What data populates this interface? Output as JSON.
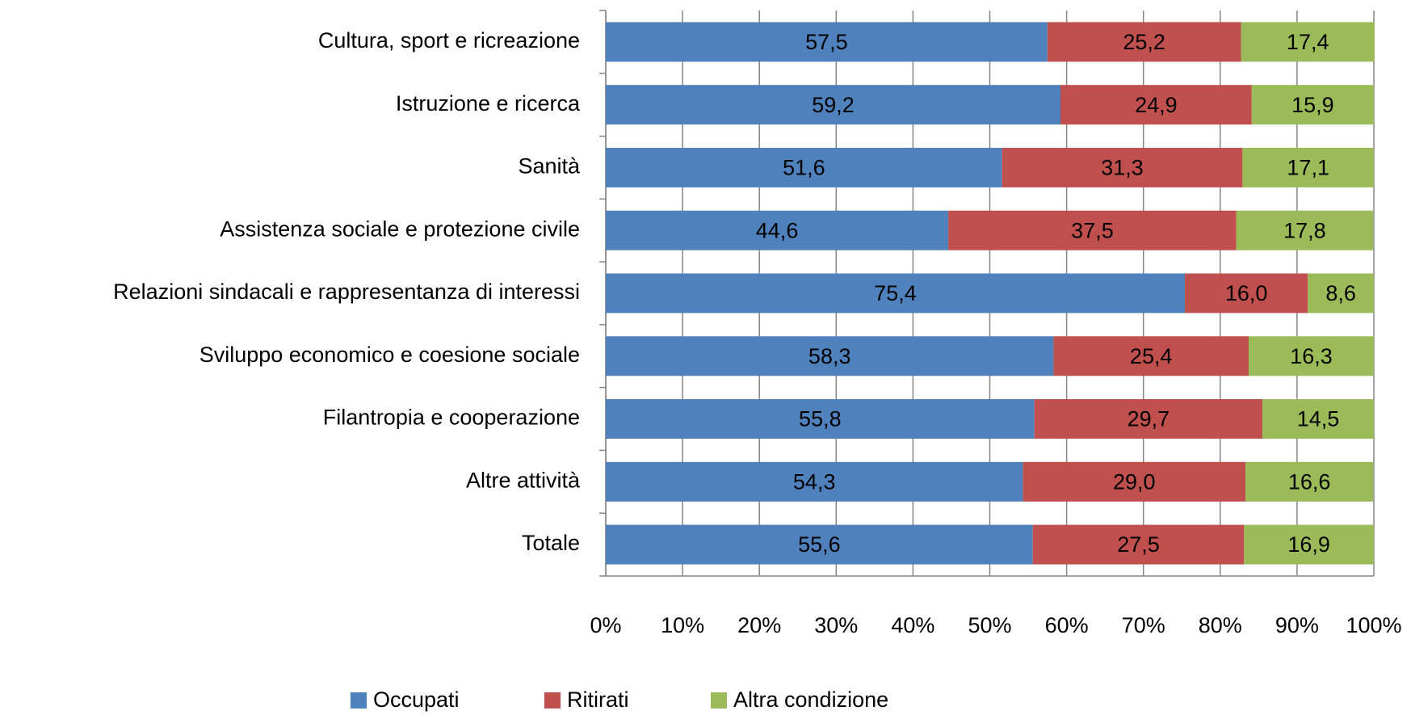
{
  "chart_data": {
    "type": "bar",
    "orientation": "horizontal",
    "stacked": true,
    "categories": [
      "Cultura, sport e ricreazione",
      "Istruzione e ricerca",
      "Sanità",
      "Assistenza sociale e protezione civile",
      "Relazioni sindacali e rappresentanza di interessi",
      "Sviluppo economico e coesione sociale",
      "Filantropia e cooperazione",
      "Altre attività",
      "Totale"
    ],
    "series": [
      {
        "name": "Occupati",
        "color": "#4f81bd",
        "values": [
          57.5,
          59.2,
          51.6,
          44.6,
          75.4,
          58.3,
          55.8,
          54.3,
          55.6
        ],
        "value_labels": [
          "57,5",
          "59,2",
          "51,6",
          "44,6",
          "75,4",
          "58,3",
          "55,8",
          "54,3",
          "55,6"
        ]
      },
      {
        "name": "Ritirati",
        "color": "#c0504d",
        "values": [
          25.2,
          24.9,
          31.3,
          37.5,
          16.0,
          25.4,
          29.7,
          29.0,
          27.5
        ],
        "value_labels": [
          "25,2",
          "24,9",
          "31,3",
          "37,5",
          "16,0",
          "25,4",
          "29,7",
          "29,0",
          "27,5"
        ]
      },
      {
        "name": "Altra condizione",
        "color": "#9bbb59",
        "values": [
          17.4,
          15.9,
          17.1,
          17.8,
          8.6,
          16.3,
          14.5,
          16.6,
          16.9
        ],
        "value_labels": [
          "17,4",
          "15,9",
          "17,1",
          "17,8",
          "8,6",
          "16,3",
          "14,5",
          "16,6",
          "16,9"
        ]
      }
    ],
    "xlim": [
      0,
      100
    ],
    "xticks": [
      {
        "value": 0,
        "label": "0%"
      },
      {
        "value": 10,
        "label": "10%"
      },
      {
        "value": 20,
        "label": "20%"
      },
      {
        "value": 30,
        "label": "30%"
      },
      {
        "value": 40,
        "label": "40%"
      },
      {
        "value": 50,
        "label": "50%"
      },
      {
        "value": 60,
        "label": "60%"
      },
      {
        "value": 70,
        "label": "70%"
      },
      {
        "value": 80,
        "label": "80%"
      },
      {
        "value": 90,
        "label": "90%"
      },
      {
        "value": 100,
        "label": "100%"
      }
    ],
    "grid": true,
    "legend": "bottom"
  }
}
